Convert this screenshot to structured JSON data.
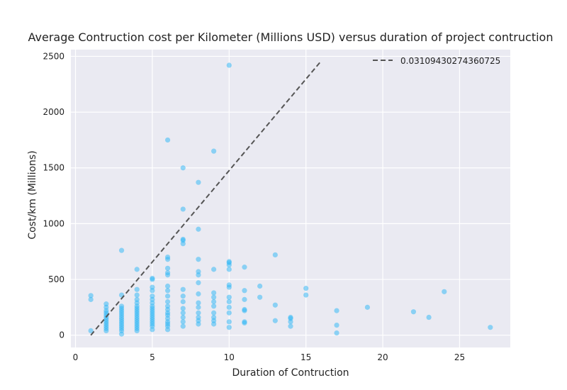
{
  "chart_data": {
    "type": "scatter",
    "title": "Average Contruction cost per Kilometer (Millions USD) versus duration of project contruction",
    "xlabel": "Duration of Contruction",
    "ylabel": "Cost/km (Millions)",
    "xlim": [
      -0.3,
      28.3
    ],
    "ylim": [
      -110,
      2560
    ],
    "xticks": [
      0,
      5,
      10,
      15,
      20,
      25
    ],
    "yticks": [
      0,
      500,
      1000,
      1500,
      2000,
      2500
    ],
    "grid": true,
    "legend_position": "top-right",
    "colors": {
      "background": "#eaeaf2",
      "grid": "#ffffff",
      "point": "#29b6f6",
      "trend_line": "#555555"
    },
    "trend_line": {
      "label": "0.03109430274360725",
      "style": "dashed",
      "x": [
        1,
        16
      ],
      "y": [
        0,
        2460
      ]
    },
    "points": [
      [
        1,
        40
      ],
      [
        1,
        320
      ],
      [
        1,
        355
      ],
      [
        2,
        40
      ],
      [
        2,
        60
      ],
      [
        2,
        80
      ],
      [
        2,
        100
      ],
      [
        2,
        120
      ],
      [
        2,
        140
      ],
      [
        2,
        160
      ],
      [
        2,
        180
      ],
      [
        2,
        200
      ],
      [
        2,
        220
      ],
      [
        2,
        250
      ],
      [
        2,
        280
      ],
      [
        3,
        10
      ],
      [
        3,
        40
      ],
      [
        3,
        60
      ],
      [
        3,
        80
      ],
      [
        3,
        100
      ],
      [
        3,
        120
      ],
      [
        3,
        140
      ],
      [
        3,
        160
      ],
      [
        3,
        180
      ],
      [
        3,
        200
      ],
      [
        3,
        220
      ],
      [
        3,
        240
      ],
      [
        3,
        260
      ],
      [
        3,
        360
      ],
      [
        3,
        760
      ],
      [
        4,
        40
      ],
      [
        4,
        60
      ],
      [
        4,
        80
      ],
      [
        4,
        100
      ],
      [
        4,
        120
      ],
      [
        4,
        140
      ],
      [
        4,
        160
      ],
      [
        4,
        180
      ],
      [
        4,
        200
      ],
      [
        4,
        220
      ],
      [
        4,
        240
      ],
      [
        4,
        260
      ],
      [
        4,
        290
      ],
      [
        4,
        320
      ],
      [
        4,
        360
      ],
      [
        4,
        410
      ],
      [
        4,
        590
      ],
      [
        5,
        50
      ],
      [
        5,
        80
      ],
      [
        5,
        100
      ],
      [
        5,
        120
      ],
      [
        5,
        140
      ],
      [
        5,
        160
      ],
      [
        5,
        180
      ],
      [
        5,
        200
      ],
      [
        5,
        220
      ],
      [
        5,
        240
      ],
      [
        5,
        260
      ],
      [
        5,
        290
      ],
      [
        5,
        320
      ],
      [
        5,
        350
      ],
      [
        5,
        400
      ],
      [
        5,
        430
      ],
      [
        5,
        500
      ],
      [
        5,
        510
      ],
      [
        6,
        50
      ],
      [
        6,
        80
      ],
      [
        6,
        100
      ],
      [
        6,
        120
      ],
      [
        6,
        150
      ],
      [
        6,
        180
      ],
      [
        6,
        200
      ],
      [
        6,
        230
      ],
      [
        6,
        260
      ],
      [
        6,
        300
      ],
      [
        6,
        350
      ],
      [
        6,
        400
      ],
      [
        6,
        440
      ],
      [
        6,
        540
      ],
      [
        6,
        560
      ],
      [
        6,
        600
      ],
      [
        6,
        680
      ],
      [
        6,
        700
      ],
      [
        6,
        1750
      ],
      [
        7,
        80
      ],
      [
        7,
        120
      ],
      [
        7,
        160
      ],
      [
        7,
        200
      ],
      [
        7,
        240
      ],
      [
        7,
        300
      ],
      [
        7,
        350
      ],
      [
        7,
        410
      ],
      [
        7,
        820
      ],
      [
        7,
        850
      ],
      [
        7,
        860
      ],
      [
        7,
        1130
      ],
      [
        7,
        1500
      ],
      [
        8,
        100
      ],
      [
        8,
        130
      ],
      [
        8,
        160
      ],
      [
        8,
        200
      ],
      [
        8,
        250
      ],
      [
        8,
        290
      ],
      [
        8,
        370
      ],
      [
        8,
        470
      ],
      [
        8,
        540
      ],
      [
        8,
        570
      ],
      [
        8,
        680
      ],
      [
        8,
        950
      ],
      [
        8,
        1370
      ],
      [
        9,
        100
      ],
      [
        9,
        130
      ],
      [
        9,
        160
      ],
      [
        9,
        200
      ],
      [
        9,
        260
      ],
      [
        9,
        300
      ],
      [
        9,
        340
      ],
      [
        9,
        380
      ],
      [
        9,
        590
      ],
      [
        9,
        1650
      ],
      [
        10,
        70
      ],
      [
        10,
        120
      ],
      [
        10,
        200
      ],
      [
        10,
        250
      ],
      [
        10,
        300
      ],
      [
        10,
        340
      ],
      [
        10,
        430
      ],
      [
        10,
        450
      ],
      [
        10,
        590
      ],
      [
        10,
        630
      ],
      [
        10,
        650
      ],
      [
        10,
        660
      ],
      [
        10,
        2420
      ],
      [
        11,
        110
      ],
      [
        11,
        120
      ],
      [
        11,
        220
      ],
      [
        11,
        230
      ],
      [
        11,
        320
      ],
      [
        11,
        400
      ],
      [
        11,
        610
      ],
      [
        12,
        340
      ],
      [
        12,
        440
      ],
      [
        13,
        130
      ],
      [
        13,
        270
      ],
      [
        13,
        720
      ],
      [
        14,
        80
      ],
      [
        14,
        120
      ],
      [
        14,
        150
      ],
      [
        14,
        160
      ],
      [
        15,
        360
      ],
      [
        15,
        420
      ],
      [
        17,
        20
      ],
      [
        17,
        90
      ],
      [
        17,
        220
      ],
      [
        19,
        250
      ],
      [
        22,
        210
      ],
      [
        23,
        160
      ],
      [
        24,
        390
      ],
      [
        27,
        70
      ]
    ]
  }
}
